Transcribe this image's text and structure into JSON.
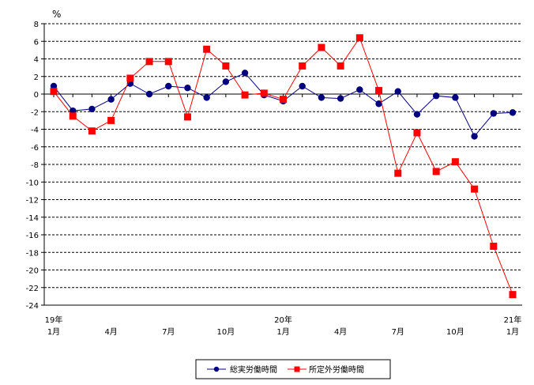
{
  "chart_data": {
    "type": "line",
    "unit_label": "%",
    "ylim": [
      -24,
      8
    ],
    "y_ticks": [
      8,
      6,
      4,
      2,
      0,
      -2,
      -4,
      -6,
      -8,
      -10,
      -12,
      -14,
      -16,
      -18,
      -20,
      -22,
      -24
    ],
    "grid": "horizontal-dashed",
    "legend_position": "bottom-center",
    "x_tick_labels": [
      {
        "index": 0,
        "year": "19年",
        "month": "1月"
      },
      {
        "index": 3,
        "year": "",
        "month": "4月"
      },
      {
        "index": 6,
        "year": "",
        "month": "7月"
      },
      {
        "index": 9,
        "year": "",
        "month": "10月"
      },
      {
        "index": 12,
        "year": "20年",
        "month": "1月"
      },
      {
        "index": 15,
        "year": "",
        "month": "4月"
      },
      {
        "index": 18,
        "year": "",
        "month": "7月"
      },
      {
        "index": 21,
        "year": "",
        "month": "10月"
      },
      {
        "index": 24,
        "year": "21年",
        "month": "1月"
      }
    ],
    "x": [
      "2019-01",
      "2019-02",
      "2019-03",
      "2019-04",
      "2019-05",
      "2019-06",
      "2019-07",
      "2019-08",
      "2019-09",
      "2019-10",
      "2019-11",
      "2019-12",
      "2020-01",
      "2020-02",
      "2020-03",
      "2020-04",
      "2020-05",
      "2020-06",
      "2020-07",
      "2020-08",
      "2020-09",
      "2020-10",
      "2020-11",
      "2020-12",
      "2021-01"
    ],
    "series": [
      {
        "name": "総実労働時間",
        "color": "#000080",
        "marker": "circle",
        "values": [
          0.9,
          -1.9,
          -1.7,
          -0.6,
          1.2,
          0.0,
          0.9,
          0.7,
          -0.4,
          1.4,
          2.4,
          -0.1,
          -0.8,
          0.9,
          -0.4,
          -0.5,
          0.5,
          -1.1,
          0.3,
          -2.3,
          -0.2,
          -0.4,
          -4.8,
          -2.2,
          -2.1
        ]
      },
      {
        "name": "所定外労働時間",
        "color": "#ff0000",
        "marker": "square",
        "values": [
          0.3,
          -2.5,
          -4.2,
          -3.0,
          1.8,
          3.7,
          3.7,
          -2.6,
          5.1,
          3.2,
          -0.1,
          0.1,
          -0.6,
          3.2,
          5.3,
          3.2,
          6.4,
          0.4,
          -9.0,
          -4.4,
          -8.8,
          -7.7,
          -10.8,
          -17.3,
          -22.8
        ]
      }
    ]
  }
}
